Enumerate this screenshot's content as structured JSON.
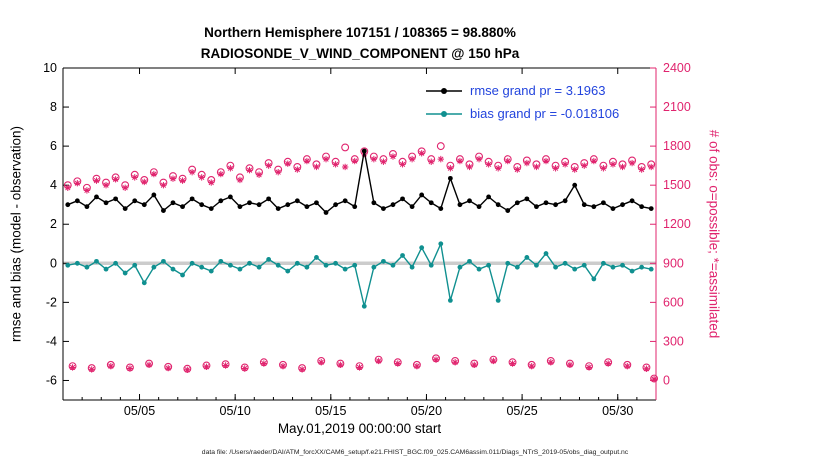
{
  "title": {
    "line1": "Northern Hemisphere 107151 / 108365 = 98.880%",
    "line2": "RADIOSONDE_V_WIND_COMPONENT @ 150 hPa"
  },
  "legend": {
    "items": [
      {
        "label": "rmse grand pr = 3.1963",
        "series": "rmse"
      },
      {
        "label": "bias grand pr = -0.018106",
        "series": "bias"
      }
    ]
  },
  "footer": {
    "text": "data file: /Users/raeder/DAI/ATM_forcXX/CAM6_setup/f.e21.FHIST_BGC.f09_025.CAM6assim.011/Diags_NTrS_2019-05/obs_diag_output.nc"
  },
  "colors": {
    "rmse": "#000000",
    "bias": "#109090",
    "obs": "#e0246e",
    "legend_text": "#2244dd",
    "zero_line": "#cccccc",
    "axis": "#000000"
  },
  "chart_data": {
    "type": "line",
    "title": "Northern Hemisphere 107151 / 108365 = 98.880% — RADIOSONDE_V_WIND_COMPONENT @ 150 hPa",
    "xlabel": "May.01,2019 00:00:00 start",
    "ylabel_left": "rmse and bias (model - observation)",
    "ylabel_right": "# of obs: o=possible; *=assimilated",
    "xlim": [
      1,
      32
    ],
    "ylim_left": [
      -7,
      10
    ],
    "yticks_left": [
      -6,
      -4,
      -2,
      0,
      2,
      4,
      6,
      8,
      10
    ],
    "right_axis": {
      "ticks": [
        0,
        300,
        600,
        900,
        1200,
        1500,
        1800,
        2100,
        2400
      ],
      "scale": 150,
      "offset": -6
    },
    "xticks": {
      "values": [
        5,
        10,
        15,
        20,
        25,
        30
      ],
      "labels": [
        "05/05",
        "05/10",
        "05/15",
        "05/20",
        "05/25",
        "05/30"
      ]
    },
    "grid": false,
    "legend_position": "top-right-inside",
    "x_halfday": [
      1.25,
      1.75,
      2.25,
      2.75,
      3.25,
      3.75,
      4.25,
      4.75,
      5.25,
      5.75,
      6.25,
      6.75,
      7.25,
      7.75,
      8.25,
      8.75,
      9.25,
      9.75,
      10.25,
      10.75,
      11.25,
      11.75,
      12.25,
      12.75,
      13.25,
      13.75,
      14.25,
      14.75,
      15.25,
      15.75,
      16.25,
      16.75,
      17.25,
      17.75,
      18.25,
      18.75,
      19.25,
      19.75,
      20.25,
      20.75,
      21.25,
      21.75,
      22.25,
      22.75,
      23.25,
      23.75,
      24.25,
      24.75,
      25.25,
      25.75,
      26.25,
      26.75,
      27.25,
      27.75,
      28.25,
      28.75,
      29.25,
      29.75,
      30.25,
      30.75,
      31.25,
      31.75
    ],
    "x_daily": [
      1.5,
      2.5,
      3.5,
      4.5,
      5.5,
      6.5,
      7.5,
      8.5,
      9.5,
      10.5,
      11.5,
      12.5,
      13.5,
      14.5,
      15.5,
      16.5,
      17.5,
      18.5,
      19.5,
      20.5,
      21.5,
      22.5,
      23.5,
      24.5,
      25.5,
      26.5,
      27.5,
      28.5,
      29.5,
      30.5,
      31.5,
      31.9
    ],
    "series": [
      {
        "name": "possible_obs",
        "axis": "right",
        "marker": "circle",
        "color_key": "obs",
        "x": "x_halfday",
        "y": [
          1500,
          1530,
          1480,
          1550,
          1520,
          1560,
          1500,
          1580,
          1540,
          1600,
          1520,
          1570,
          1550,
          1620,
          1580,
          1540,
          1600,
          1650,
          1560,
          1630,
          1600,
          1670,
          1620,
          1680,
          1640,
          1700,
          1660,
          1720,
          1680,
          1790,
          1700,
          1760,
          1720,
          1700,
          1740,
          1680,
          1720,
          1760,
          1700,
          1800,
          1650,
          1700,
          1660,
          1720,
          1680,
          1650,
          1700,
          1640,
          1690,
          1660,
          1700,
          1650,
          1680,
          1640,
          1670,
          1700,
          1650,
          1680,
          1660,
          1690,
          1640,
          1660
        ]
      },
      {
        "name": "assimilated_obs",
        "axis": "right",
        "marker": "asterisk",
        "color_key": "obs",
        "x": "x_halfday",
        "y": [
          1480,
          1515,
          1460,
          1535,
          1500,
          1545,
          1480,
          1560,
          1525,
          1585,
          1500,
          1550,
          1535,
          1600,
          1560,
          1520,
          1585,
          1630,
          1540,
          1615,
          1580,
          1650,
          1600,
          1665,
          1620,
          1685,
          1640,
          1700,
          1660,
          1640,
          1685,
          1740,
          1700,
          1680,
          1720,
          1660,
          1700,
          1745,
          1680,
          1700,
          1630,
          1685,
          1640,
          1700,
          1660,
          1630,
          1685,
          1620,
          1670,
          1640,
          1685,
          1630,
          1660,
          1620,
          1650,
          1685,
          1630,
          1660,
          1640,
          1670,
          1620,
          1640
        ]
      },
      {
        "name": "possible_obs_minor_times",
        "axis": "right",
        "marker": "circle",
        "color_key": "obs",
        "x": "x_daily",
        "y": [
          110,
          95,
          120,
          100,
          130,
          105,
          90,
          115,
          125,
          100,
          140,
          120,
          95,
          150,
          130,
          110,
          160,
          140,
          120,
          170,
          150,
          130,
          160,
          140,
          120,
          150,
          130,
          110,
          140,
          120,
          100,
          15
        ]
      },
      {
        "name": "assimilated_obs_minor_times",
        "axis": "right",
        "marker": "asterisk",
        "color_key": "obs",
        "x": "x_daily",
        "y": [
          100,
          85,
          110,
          92,
          120,
          95,
          82,
          105,
          115,
          92,
          130,
          110,
          85,
          140,
          120,
          100,
          150,
          130,
          110,
          160,
          140,
          120,
          150,
          130,
          110,
          140,
          120,
          100,
          130,
          110,
          90,
          10
        ]
      },
      {
        "name": "rmse",
        "axis": "left",
        "marker": "dot",
        "line": true,
        "color_key": "rmse",
        "x": "x_halfday",
        "y": [
          3.0,
          3.2,
          2.9,
          3.4,
          3.1,
          3.3,
          2.8,
          3.2,
          3.0,
          3.5,
          2.7,
          3.1,
          2.9,
          3.3,
          3.0,
          2.8,
          3.2,
          3.4,
          2.9,
          3.1,
          3.0,
          3.3,
          2.8,
          3.0,
          3.2,
          2.9,
          3.1,
          2.6,
          3.0,
          3.2,
          2.9,
          5.75,
          3.1,
          2.8,
          3.0,
          3.3,
          2.9,
          3.5,
          3.1,
          2.8,
          4.35,
          3.0,
          3.2,
          2.9,
          3.4,
          3.0,
          2.7,
          3.1,
          3.3,
          2.9,
          3.1,
          3.0,
          3.2,
          4.0,
          3.0,
          2.9,
          3.1,
          2.8,
          3.0,
          3.2,
          2.9,
          2.8
        ]
      },
      {
        "name": "bias",
        "axis": "left",
        "marker": "dot",
        "line": true,
        "color_key": "bias",
        "x": "x_halfday",
        "y": [
          -0.1,
          0.0,
          -0.2,
          0.1,
          -0.3,
          0.0,
          -0.5,
          -0.1,
          -1.0,
          -0.2,
          0.1,
          -0.3,
          -0.6,
          0.0,
          -0.2,
          -0.4,
          0.1,
          -0.1,
          -0.3,
          0.0,
          -0.2,
          0.2,
          -0.1,
          -0.4,
          0.0,
          -0.2,
          0.3,
          -0.1,
          0.0,
          -0.3,
          -0.1,
          -2.2,
          -0.2,
          0.1,
          -0.1,
          0.4,
          -0.2,
          0.8,
          -0.1,
          1.0,
          -1.9,
          -0.2,
          0.1,
          -0.3,
          -0.1,
          -1.9,
          0.0,
          -0.2,
          0.3,
          -0.1,
          0.5,
          -0.2,
          0.0,
          -0.3,
          -0.1,
          -0.8,
          0.0,
          -0.2,
          -0.1,
          -0.4,
          -0.2,
          -0.3
        ]
      }
    ]
  }
}
